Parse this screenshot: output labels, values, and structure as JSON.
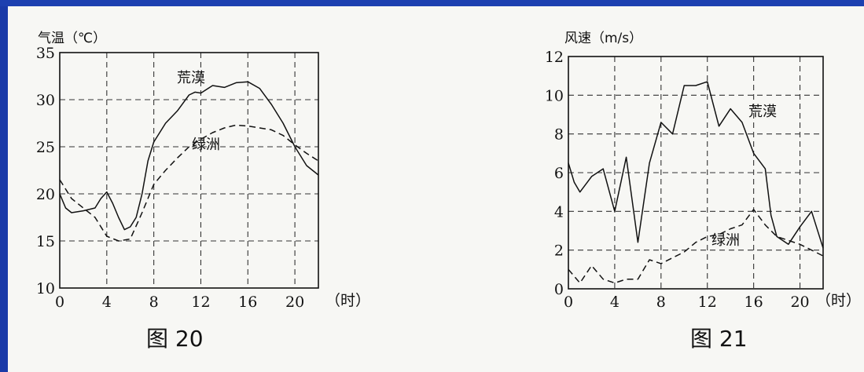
{
  "colors": {
    "background": "#1a3aa8",
    "paper": "#f7f7f4",
    "ink": "#111111"
  },
  "chart_data": [
    {
      "type": "line",
      "caption": "图 20",
      "ylabel": "气温（℃）",
      "xunit": "（时）",
      "xlim": [
        0,
        22
      ],
      "ylim": [
        10,
        35
      ],
      "xticks": [
        0,
        4,
        8,
        12,
        16,
        20
      ],
      "yticks": [
        10,
        15,
        20,
        25,
        30,
        35
      ],
      "grid": true,
      "series": [
        {
          "name": "荒漠",
          "style": "solid",
          "x": [
            0,
            0.5,
            1,
            2,
            3,
            3.5,
            4,
            4.5,
            5,
            5.5,
            6,
            6.5,
            7,
            7.5,
            8,
            9,
            10,
            11,
            11.5,
            12,
            13,
            14,
            15,
            16,
            17,
            18,
            19,
            20,
            21,
            22
          ],
          "y": [
            20,
            18.5,
            18,
            18.2,
            18.5,
            19.5,
            20.2,
            19,
            17.5,
            16.2,
            16.5,
            17.5,
            20,
            23.5,
            25.5,
            27.5,
            28.8,
            30.5,
            30.8,
            30.7,
            31.5,
            31.3,
            31.8,
            31.9,
            31.2,
            29.5,
            27.5,
            25,
            23,
            22
          ]
        },
        {
          "name": "绿洲",
          "style": "dashed",
          "x": [
            0,
            1,
            2,
            3,
            4,
            5,
            6,
            7,
            8,
            9,
            10,
            11,
            12,
            13,
            14,
            15,
            16,
            17,
            18,
            19,
            20,
            21,
            22
          ],
          "y": [
            21.5,
            19.5,
            18.5,
            17.5,
            15.5,
            15,
            15.2,
            18,
            21,
            22.5,
            23.8,
            25,
            25.8,
            26.5,
            27,
            27.3,
            27.2,
            27,
            26.8,
            26.2,
            25.2,
            24.3,
            23.5
          ]
        }
      ]
    },
    {
      "type": "line",
      "caption": "图 21",
      "ylabel": "风速（m/s）",
      "xunit": "（时）",
      "xlim": [
        0,
        22
      ],
      "ylim": [
        0,
        12
      ],
      "xticks": [
        0,
        4,
        8,
        12,
        16,
        20
      ],
      "yticks": [
        0,
        2,
        4,
        6,
        8,
        10,
        12
      ],
      "grid": true,
      "series": [
        {
          "name": "荒漠",
          "style": "solid",
          "x": [
            0,
            0.5,
            1,
            2,
            3,
            4,
            5,
            6,
            7,
            8,
            9,
            10,
            11,
            12,
            13,
            14,
            15,
            16,
            17,
            17.5,
            18,
            19,
            20,
            21,
            22
          ],
          "y": [
            6.5,
            5.5,
            5,
            5.8,
            6.2,
            4,
            6.8,
            2.4,
            6.5,
            8.6,
            8,
            10.5,
            10.5,
            10.7,
            8.4,
            9.3,
            8.6,
            7,
            6.2,
            3.8,
            2.7,
            2.3,
            3.2,
            4,
            2.1
          ]
        },
        {
          "name": "绿洲",
          "style": "dashed",
          "x": [
            0,
            1,
            2,
            3,
            4,
            5,
            6,
            7,
            8,
            9,
            10,
            11,
            12,
            13,
            14,
            15,
            16,
            17,
            18,
            19,
            20,
            21,
            22
          ],
          "y": [
            1,
            0.3,
            1.2,
            0.5,
            0.3,
            0.5,
            0.5,
            1.5,
            1.3,
            1.6,
            1.9,
            2.4,
            2.7,
            2.8,
            3.1,
            3.3,
            4.1,
            3.3,
            2.7,
            2.5,
            2.3,
            2,
            1.7
          ]
        }
      ]
    }
  ]
}
